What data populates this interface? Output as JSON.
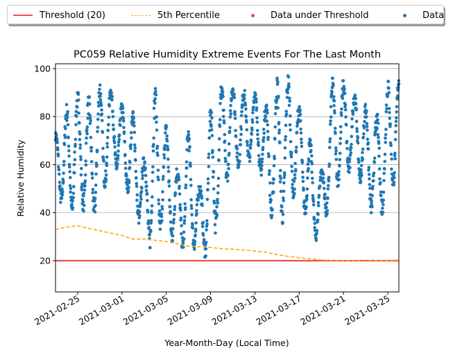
{
  "legend": {
    "threshold": "Threshold (20)",
    "percentile": "5th Percentile",
    "under": "Data under Threshold",
    "data": "Data"
  },
  "colors": {
    "threshold": "#e8504c",
    "percentile": "#ffa500",
    "under": "#d9534f",
    "data": "#1f77b4",
    "grid": "#b0b0b0"
  },
  "chart_data": {
    "type": "scatter",
    "title": "PC059 Relative Humidity Extreme Events For The Last Month",
    "xlabel": "Year-Month-Day (Local Time)",
    "ylabel": "Relative Humidity",
    "xlim": [
      "2021-02-23",
      "2021-03-26"
    ],
    "ylim": [
      7,
      102
    ],
    "grid": "horizontal",
    "legend_position": "top",
    "x_ticks": [
      "2021-02-25",
      "2021-03-01",
      "2021-03-05",
      "2021-03-09",
      "2021-03-13",
      "2021-03-17",
      "2021-03-21",
      "2021-03-25"
    ],
    "y_ticks": [
      20,
      40,
      60,
      80,
      100
    ],
    "threshold": 20,
    "percentile_5th": {
      "x": [
        "2021-02-23",
        "2021-02-24",
        "2021-02-25",
        "2021-02-26",
        "2021-02-27",
        "2021-02-28",
        "2021-03-01",
        "2021-03-02",
        "2021-03-03",
        "2021-03-04",
        "2021-03-05",
        "2021-03-06",
        "2021-03-07",
        "2021-03-08",
        "2021-03-09",
        "2021-03-10",
        "2021-03-11",
        "2021-03-12",
        "2021-03-13",
        "2021-03-14",
        "2021-03-15",
        "2021-03-16",
        "2021-03-17",
        "2021-03-18",
        "2021-03-19",
        "2021-03-20",
        "2021-03-21",
        "2021-03-22",
        "2021-03-23",
        "2021-03-24",
        "2021-03-25",
        "2021-03-26"
      ],
      "y": [
        33,
        34,
        34.5,
        33.5,
        32.5,
        31.5,
        30.5,
        29,
        29,
        28.5,
        28,
        27,
        26,
        25.8,
        25.5,
        25,
        24.8,
        24.5,
        24,
        23.5,
        22.5,
        21.8,
        21.2,
        20.8,
        20.3,
        20,
        20,
        20,
        19.8,
        20,
        20,
        20.2
      ]
    },
    "daily_ranges": {
      "x": [
        "2021-02-23",
        "2021-02-24",
        "2021-02-25",
        "2021-02-26",
        "2021-02-27",
        "2021-02-28",
        "2021-03-01",
        "2021-03-02",
        "2021-03-03",
        "2021-03-04",
        "2021-03-05",
        "2021-03-06",
        "2021-03-07",
        "2021-03-08",
        "2021-03-09",
        "2021-03-10",
        "2021-03-11",
        "2021-03-12",
        "2021-03-13",
        "2021-03-14",
        "2021-03-15",
        "2021-03-16",
        "2021-03-17",
        "2021-03-18",
        "2021-03-19",
        "2021-03-20",
        "2021-03-21",
        "2021-03-22",
        "2021-03-23",
        "2021-03-24",
        "2021-03-25",
        "2021-03-26"
      ],
      "min": [
        53,
        34,
        45,
        37,
        40,
        63,
        52,
        45,
        27,
        24,
        36,
        21,
        28,
        22,
        21,
        45,
        60,
        57,
        65,
        47,
        28,
        43,
        50,
        29,
        28,
        50,
        52,
        60,
        45,
        35,
        44,
        58
      ],
      "max": [
        73,
        85,
        90,
        88,
        94,
        92,
        85,
        82,
        62,
        92,
        76,
        58,
        75,
        50,
        84,
        94,
        94,
        92,
        90,
        85,
        96,
        97,
        85,
        70,
        57,
        96,
        95,
        90,
        85,
        80,
        95,
        97
      ]
    },
    "under_threshold_points": 0
  }
}
